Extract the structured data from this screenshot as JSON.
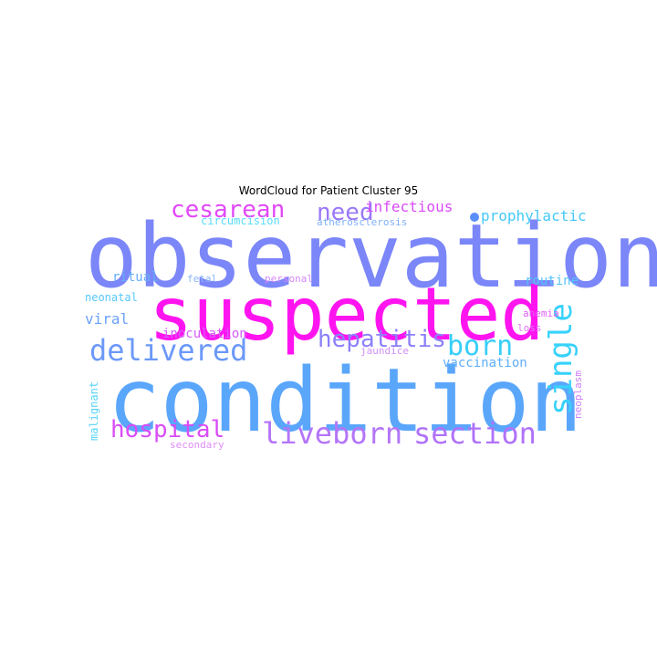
{
  "chart_data": {
    "type": "wordcloud",
    "title": "WordCloud for Patient Cluster 95",
    "words": [
      {
        "text": "observation",
        "color": "#7b86f8"
      },
      {
        "text": "suspected",
        "color": "#ff14f0"
      },
      {
        "text": "condition",
        "color": "#5aa6fb"
      },
      {
        "text": "delivered",
        "color": "#6b98f9"
      },
      {
        "text": "cesarean",
        "color": "#e248f8"
      },
      {
        "text": "hepatitis",
        "color": "#8c80f9"
      },
      {
        "text": "born",
        "color": "#37cef8"
      },
      {
        "text": "single",
        "color": "#37d2fb"
      },
      {
        "text": "liveborn",
        "color": "#b475f8"
      },
      {
        "text": "section",
        "color": "#b072f9"
      },
      {
        "text": "hospital",
        "color": "#d94cf8"
      },
      {
        "text": "need",
        "color": "#9a78f8"
      },
      {
        "text": "infectious",
        "color": "#da4cf8"
      },
      {
        "text": "prophylactic",
        "color": "#45c8f9"
      },
      {
        "text": "circumcision",
        "color": "#55dcf9"
      },
      {
        "text": "atherosclerosis",
        "color": "#7fb0f9"
      },
      {
        "text": "ritual",
        "color": "#63aef9"
      },
      {
        "text": "fetal",
        "color": "#8ab4f9"
      },
      {
        "text": "personal",
        "color": "#d887f8"
      },
      {
        "text": "routine",
        "color": "#55c4f9"
      },
      {
        "text": "neonatal",
        "color": "#55c8f9"
      },
      {
        "text": "anemia",
        "color": "#e15cf8"
      },
      {
        "text": "viral",
        "color": "#6aa2f9"
      },
      {
        "text": "inoculation",
        "color": "#d45cf9"
      },
      {
        "text": "loss",
        "color": "#e078f8"
      },
      {
        "text": "jaundice",
        "color": "#d090f8"
      },
      {
        "text": "vaccination",
        "color": "#5eaef9"
      },
      {
        "text": "malignant",
        "color": "#55d4f9"
      },
      {
        "text": "neoplasm",
        "color": "#d080f9"
      },
      {
        "text": "secondary",
        "color": "#e08cf8"
      }
    ]
  }
}
